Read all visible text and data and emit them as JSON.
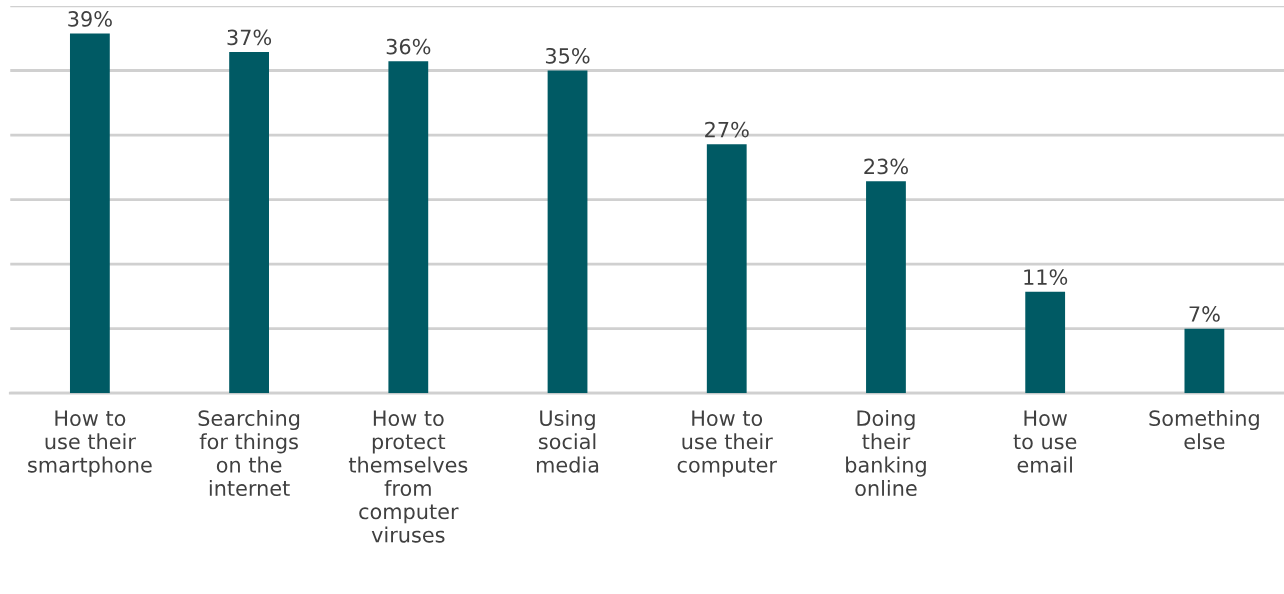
{
  "chart_data": {
    "type": "bar",
    "categories": [
      "How to\nuse their\nsmartphone",
      "Searching\nfor things\non the\ninternet",
      "How to\nprotect\nthemselves\nfrom\ncomputer\nviruses",
      "Using\nsocial\nmedia",
      "How to\nuse their\ncomputer",
      "Doing\ntheir\nbanking\nonline",
      "How\nto use\nemail",
      "Something\nelse"
    ],
    "values": [
      39,
      37,
      36,
      35,
      27,
      23,
      11,
      7
    ],
    "value_labels": [
      "39%",
      "37%",
      "36%",
      "35%",
      "27%",
      "23%",
      "11%",
      "7%"
    ],
    "color": "#005a64",
    "ylim": [
      0,
      42
    ],
    "yticks": [
      {
        "value": 0,
        "label": null
      },
      {
        "value": 7,
        "label": null
      },
      {
        "value": 14,
        "label": null
      },
      {
        "value": 21,
        "label": null
      },
      {
        "value": 28,
        "label": null
      },
      {
        "value": 35,
        "label": null
      },
      {
        "value": 42,
        "label": null
      }
    ],
    "tick_labels": "x",
    "grid": "y"
  }
}
